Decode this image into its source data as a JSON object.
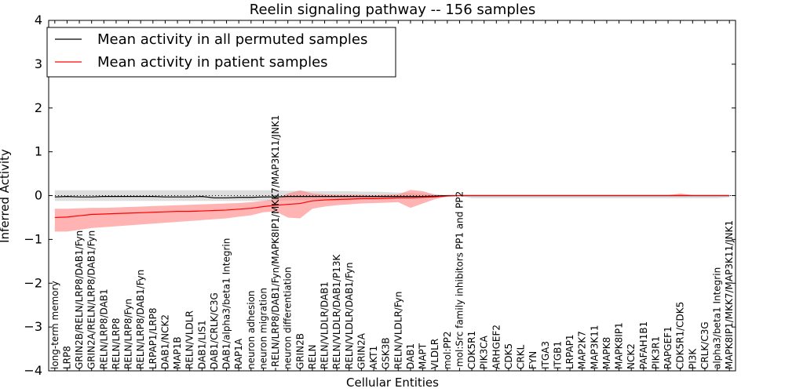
{
  "chart_data": {
    "type": "line",
    "title": "Reelin signaling pathway -- 156 samples",
    "xlabel": "Cellular Entities",
    "ylabel": "Inferred Activity",
    "ylim": [
      -4,
      4
    ],
    "yticks": [
      -4,
      -3,
      -2,
      -1,
      0,
      1,
      2,
      3,
      4
    ],
    "legend_position": "top-left",
    "categories": [
      "long-term memory",
      "LRP8",
      "GRIN2B/RELN/LRP8/DAB1/Fyn",
      "GRIN2A/RELN/LRP8/DAB1/Fyn",
      "RELN/LRP8/DAB1",
      "RELN/LRP8",
      "RELN/LRP8/Fyn",
      "RELN/LRP8/DAB1/Fyn",
      "LRPAP1/LRP8",
      "DAB1/NCK2",
      "MAP1B",
      "RELN/VLDLR",
      "DAB1/LIS1",
      "DAB1/CRLK/C3G",
      "DAB1/alpha3/beta1 Integrin",
      "RAP1A",
      "neuron adhesion",
      "neuron migration",
      "RELN/LRP8/DAB1/Fyn/MAPK8IP1/MKK7/MAP3K11/JNK1",
      "neuron differentiation",
      "GRIN2B",
      "RELN",
      "RELN/VLDLR/DAB1",
      "RELN/VLDLR/DAB1/P13K",
      "RELN/VLDLR/DAB1/Fyn",
      "GRIN2A",
      "AKT1",
      "GSK3B",
      "RELN/VLDLR/Fyn",
      "DAB1",
      "MAPT",
      "VLDLR",
      "mol:PP2",
      "mol:Src family inhibitors PP1 and PP2",
      "CDK5R1",
      "PIK3CA",
      "ARHGEF2",
      "CDK5",
      "CRKL",
      "FYN",
      "ITGA3",
      "ITGB1",
      "LRPAP1",
      "MAP2K7",
      "MAP3K11",
      "MAPK8",
      "MAPK8IP1",
      "NCK2",
      "PAFAH1B1",
      "PIK3R1",
      "RAPGEF1",
      "CDK5R1/CDK5",
      "PI3K",
      "CRLK/C3G",
      "alpha3/beta1 Integrin",
      "MAPK8IP1/MKK7/MAP3K11/JNK1"
    ],
    "series": [
      {
        "name": "Mean activity in all permuted samples",
        "color": "#000000",
        "values": [
          -0.03,
          -0.02,
          -0.03,
          -0.03,
          -0.02,
          -0.02,
          -0.02,
          -0.02,
          -0.02,
          -0.03,
          -0.03,
          -0.03,
          -0.02,
          -0.05,
          -0.05,
          -0.04,
          -0.04,
          -0.03,
          -0.03,
          -0.02,
          -0.02,
          -0.02,
          -0.02,
          -0.02,
          -0.02,
          -0.02,
          -0.02,
          -0.02,
          -0.02,
          -0.02,
          -0.02,
          -0.01,
          0,
          0,
          0,
          0,
          0,
          0,
          0,
          0,
          0,
          0,
          0,
          0,
          0,
          0,
          0,
          0,
          0,
          0,
          0,
          0,
          0,
          0,
          0,
          0
        ],
        "band_upper": [
          0.12,
          0.12,
          0.12,
          0.12,
          0.12,
          0.12,
          0.12,
          0.12,
          0.12,
          0.12,
          0.12,
          0.12,
          0.12,
          0.12,
          0.12,
          0.12,
          0.12,
          0.12,
          0.12,
          0.11,
          0.11,
          0.1,
          0.1,
          0.1,
          0.1,
          0.09,
          0.09,
          0.08,
          0.07,
          0.06,
          0.05,
          0.03,
          0.01,
          0.01,
          0.01,
          0.01,
          0.01,
          0.01,
          0.01,
          0.01,
          0.01,
          0.01,
          0.01,
          0.01,
          0.01,
          0.01,
          0.01,
          0.01,
          0.01,
          0.01,
          0.01,
          0.01,
          0.01,
          0.01,
          0.01,
          0.01
        ],
        "band_lower": [
          -0.12,
          -0.12,
          -0.12,
          -0.12,
          -0.12,
          -0.12,
          -0.12,
          -0.12,
          -0.12,
          -0.12,
          -0.12,
          -0.12,
          -0.12,
          -0.12,
          -0.12,
          -0.12,
          -0.12,
          -0.12,
          -0.12,
          -0.11,
          -0.11,
          -0.1,
          -0.1,
          -0.1,
          -0.1,
          -0.09,
          -0.09,
          -0.08,
          -0.07,
          -0.06,
          -0.05,
          -0.03,
          -0.01,
          -0.01,
          -0.06,
          -0.06,
          -0.06,
          -0.06,
          -0.06,
          -0.06,
          -0.06,
          -0.06,
          -0.06,
          -0.06,
          -0.06,
          -0.06,
          -0.06,
          -0.06,
          -0.06,
          -0.06,
          -0.06,
          -0.06,
          -0.06,
          -0.06,
          -0.06,
          -0.04
        ]
      },
      {
        "name": "Mean activity in patient samples",
        "color": "#ff0000",
        "values": [
          -0.5,
          -0.49,
          -0.46,
          -0.43,
          -0.42,
          -0.41,
          -0.4,
          -0.39,
          -0.38,
          -0.37,
          -0.36,
          -0.36,
          -0.35,
          -0.34,
          -0.33,
          -0.31,
          -0.29,
          -0.25,
          -0.22,
          -0.2,
          -0.18,
          -0.12,
          -0.1,
          -0.09,
          -0.08,
          -0.07,
          -0.07,
          -0.06,
          -0.05,
          -0.05,
          -0.04,
          -0.03,
          -0.01,
          0,
          0,
          0,
          0,
          0,
          0,
          0,
          0,
          0,
          0,
          0,
          0,
          0,
          0,
          0,
          0,
          0,
          0,
          0,
          0,
          0,
          0,
          0
        ],
        "band_upper": [
          -0.3,
          -0.3,
          -0.29,
          -0.28,
          -0.28,
          -0.27,
          -0.26,
          -0.25,
          -0.24,
          -0.23,
          -0.22,
          -0.21,
          -0.2,
          -0.19,
          -0.18,
          -0.17,
          -0.15,
          -0.12,
          -0.08,
          0.05,
          0.12,
          0.05,
          0.03,
          0.02,
          0.02,
          0.02,
          0.01,
          0.02,
          0.03,
          0.13,
          0.1,
          0.02,
          0.01,
          0.01,
          0.01,
          0.01,
          0.01,
          0.01,
          0.01,
          0.01,
          0.01,
          0.01,
          0.01,
          0.01,
          0.01,
          0.01,
          0.01,
          0.01,
          0.01,
          0.01,
          0.01,
          0.05,
          0.01,
          0.01,
          0.01,
          0.01
        ],
        "band_lower": [
          -0.82,
          -0.82,
          -0.78,
          -0.74,
          -0.72,
          -0.7,
          -0.68,
          -0.66,
          -0.64,
          -0.62,
          -0.6,
          -0.58,
          -0.56,
          -0.54,
          -0.52,
          -0.48,
          -0.45,
          -0.38,
          -0.36,
          -0.5,
          -0.52,
          -0.3,
          -0.25,
          -0.22,
          -0.2,
          -0.18,
          -0.17,
          -0.16,
          -0.15,
          -0.28,
          -0.18,
          -0.08,
          -0.02,
          -0.01,
          -0.01,
          -0.01,
          -0.01,
          -0.01,
          -0.01,
          -0.01,
          -0.01,
          -0.01,
          -0.01,
          -0.01,
          -0.01,
          -0.01,
          -0.01,
          -0.01,
          -0.01,
          -0.01,
          -0.01,
          -0.01,
          -0.01,
          -0.01,
          -0.01,
          -0.01
        ]
      }
    ]
  }
}
